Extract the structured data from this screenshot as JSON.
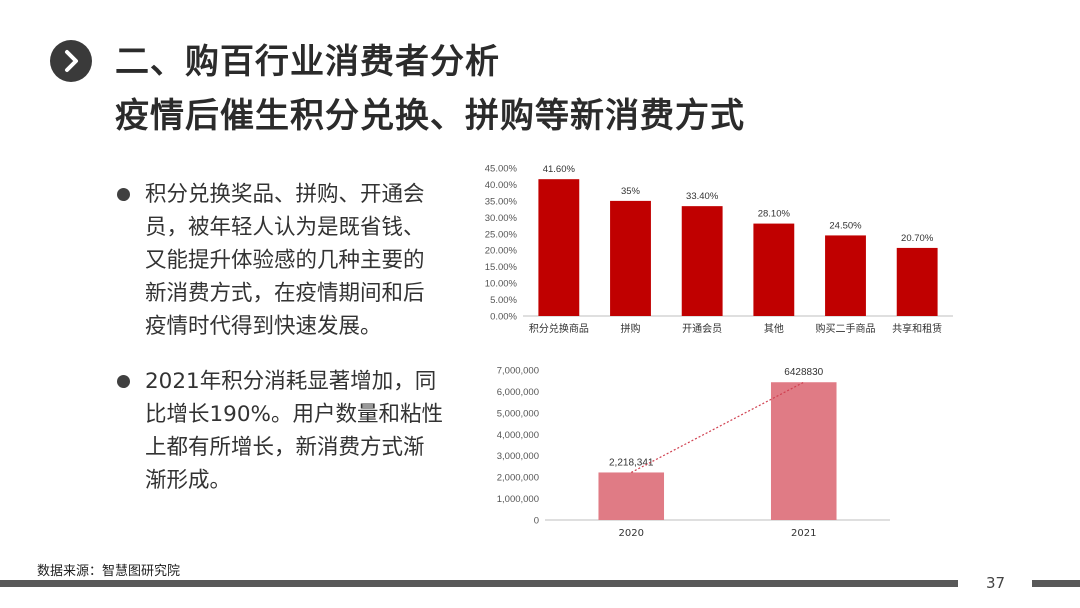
{
  "slide": {
    "title_line1": "二、购百行业消费者分析",
    "title_line2": "疫情后催生积分兑换、拼购等新消费方式",
    "bullets": [
      "积分兑换奖品、拼购、开通会员，被年轻人认为是既省钱、又能提升体验感的几种主要的新消费方式，在疫情期间和后疫情时代得到快速发展。",
      "2021年积分消耗显著增加，同比增长190%。用户数量和粘性上都有所增长，新消费方式渐渐形成。"
    ],
    "source": "数据来源：智慧图研究院",
    "page_number": "37",
    "nav_icon": "chevron-right-icon"
  },
  "chart_data": [
    {
      "type": "bar",
      "categories": [
        "积分兑换商品",
        "拼购",
        "开通会员",
        "其他",
        "购买二手商品",
        "共享和租赁"
      ],
      "values": [
        41.6,
        35,
        33.4,
        28.1,
        24.5,
        20.7
      ],
      "data_labels": [
        "41.60%",
        "35%",
        "33.40%",
        "28.10%",
        "24.50%",
        "20.70%"
      ],
      "y_ticks": [
        "0.00%",
        "5.00%",
        "10.00%",
        "15.00%",
        "20.00%",
        "25.00%",
        "30.00%",
        "35.00%",
        "40.00%",
        "45.00%"
      ],
      "ylim": [
        0,
        45
      ],
      "color": "#c00000",
      "grid": false
    },
    {
      "type": "bar",
      "categories": [
        "2020",
        "2021"
      ],
      "values": [
        2218341,
        6428830
      ],
      "data_labels": [
        "2,218,341",
        "6428830"
      ],
      "y_ticks": [
        "0",
        "1,000,000",
        "2,000,000",
        "3,000,000",
        "4,000,000",
        "5,000,000",
        "6,000,000",
        "7,000,000"
      ],
      "ylim": [
        0,
        7000000
      ],
      "color": "#e07b85",
      "trendline": "dotted",
      "trend_color": "#d04050",
      "grid": false
    }
  ]
}
